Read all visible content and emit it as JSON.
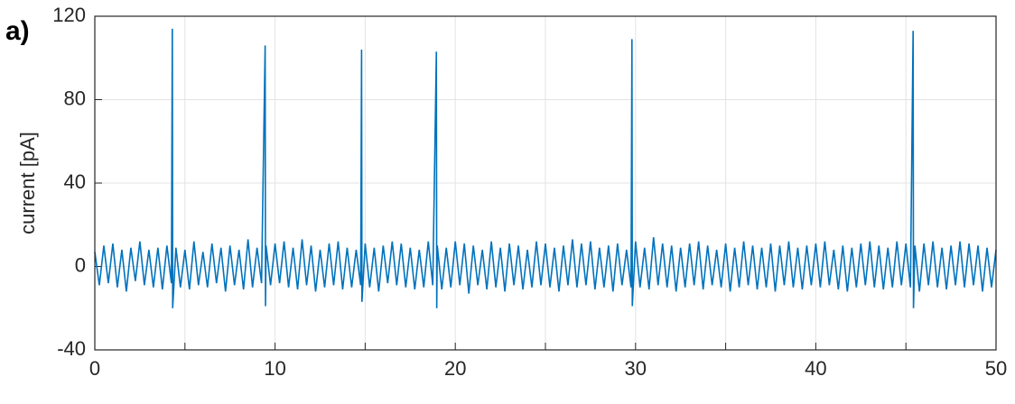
{
  "chart_data": {
    "type": "line",
    "panel_label": "a)",
    "y_label": "current [pA]",
    "xlim": [
      0,
      50
    ],
    "ylim": [
      -40,
      120
    ],
    "xticks": [
      0,
      10,
      20,
      30,
      40,
      50
    ],
    "x_minor_ticks": [
      5,
      15,
      25,
      35,
      45
    ],
    "yticks": [
      -40,
      0,
      40,
      80,
      120
    ],
    "grid": true,
    "x": [
      0,
      0.25,
      0.5,
      0.75,
      1,
      1.25,
      1.5,
      1.75,
      2,
      2.25,
      2.5,
      2.75,
      3,
      3.25,
      3.5,
      3.75,
      4,
      4.25,
      4.3,
      4.32,
      4.5,
      4.75,
      5,
      5.25,
      5.5,
      5.75,
      6,
      6.25,
      6.5,
      6.75,
      7,
      7.25,
      7.5,
      7.75,
      8,
      8.25,
      8.5,
      8.75,
      9,
      9.25,
      9.45,
      9.47,
      9.5,
      9.75,
      10,
      10.25,
      10.5,
      10.75,
      11,
      11.25,
      11.5,
      11.75,
      12,
      12.25,
      12.5,
      12.75,
      13,
      13.25,
      13.5,
      13.75,
      14,
      14.25,
      14.5,
      14.75,
      14.8,
      14.82,
      15,
      15.25,
      15.5,
      15.75,
      16,
      16.25,
      16.5,
      16.75,
      17,
      17.25,
      17.5,
      17.75,
      18,
      18.25,
      18.5,
      18.75,
      18.95,
      18.97,
      19,
      19.25,
      19.5,
      19.75,
      20,
      20.25,
      20.5,
      20.75,
      21,
      21.25,
      21.5,
      21.75,
      22,
      22.25,
      22.5,
      22.75,
      23,
      23.25,
      23.5,
      23.75,
      24,
      24.25,
      24.5,
      24.75,
      25,
      25.25,
      25.5,
      25.75,
      26,
      26.25,
      26.5,
      26.75,
      27,
      27.25,
      27.5,
      27.75,
      28,
      28.25,
      28.5,
      28.75,
      29,
      29.25,
      29.5,
      29.75,
      29.8,
      29.82,
      30,
      30.25,
      30.5,
      30.75,
      31,
      31.25,
      31.5,
      31.75,
      32,
      32.25,
      32.5,
      32.75,
      33,
      33.25,
      33.5,
      33.75,
      34,
      34.25,
      34.5,
      34.75,
      35,
      35.25,
      35.5,
      35.75,
      36,
      36.25,
      36.5,
      36.75,
      37,
      37.25,
      37.5,
      37.75,
      38,
      38.25,
      38.5,
      38.75,
      39,
      39.25,
      39.5,
      39.75,
      40,
      40.25,
      40.5,
      40.75,
      41,
      41.25,
      41.5,
      41.75,
      42,
      42.25,
      42.5,
      42.75,
      43,
      43.25,
      43.5,
      43.75,
      44,
      44.25,
      44.5,
      44.75,
      45,
      45.25,
      45.4,
      45.42,
      45.5,
      45.75,
      46,
      46.25,
      46.5,
      46.75,
      47,
      47.25,
      47.5,
      47.75,
      48,
      48.25,
      48.5,
      48.75,
      49,
      49.25,
      49.5,
      49.75,
      50
    ],
    "series": [
      {
        "color": "#0072bd",
        "values": [
          7,
          -9,
          10,
          -8,
          11,
          -10,
          8,
          -12,
          9,
          -7,
          12,
          -9,
          8,
          -10,
          9,
          -11,
          10,
          -8,
          114,
          -20,
          9,
          -10,
          8,
          -11,
          12,
          -9,
          7,
          -10,
          11,
          -8,
          9,
          -12,
          10,
          -9,
          8,
          -11,
          13,
          -10,
          9,
          -8,
          106,
          -19,
          10,
          -9,
          11,
          -8,
          12,
          -10,
          9,
          -11,
          13,
          -9,
          10,
          -12,
          8,
          -10,
          11,
          -9,
          12,
          -11,
          9,
          -10,
          8,
          -9,
          104,
          -17,
          11,
          -10,
          9,
          -12,
          10,
          -8,
          12,
          -9,
          11,
          -10,
          9,
          -11,
          8,
          -10,
          12,
          -9,
          103,
          -20,
          10,
          -11,
          9,
          -10,
          12,
          -9,
          11,
          -13,
          10,
          -9,
          8,
          -11,
          12,
          -10,
          9,
          -12,
          11,
          -9,
          10,
          -11,
          8,
          -10,
          12,
          -9,
          11,
          -10,
          9,
          -12,
          10,
          -9,
          13,
          -10,
          11,
          -9,
          12,
          -11,
          9,
          -10,
          10,
          -12,
          11,
          -9,
          8,
          -10,
          109,
          -19,
          12,
          -10,
          9,
          -11,
          14,
          -9,
          11,
          -10,
          10,
          -12,
          9,
          -10,
          11,
          -9,
          12,
          -11,
          10,
          -9,
          8,
          -10,
          11,
          -12,
          9,
          -10,
          12,
          -9,
          10,
          -11,
          9,
          -10,
          11,
          -12,
          10,
          -9,
          12,
          -10,
          9,
          -11,
          10,
          -9,
          11,
          -10,
          12,
          -9,
          8,
          -11,
          10,
          -12,
          9,
          -10,
          11,
          -9,
          12,
          -10,
          10,
          -11,
          9,
          -10,
          12,
          -9,
          11,
          -10,
          113,
          -20,
          10,
          -12,
          11,
          -9,
          12,
          -10,
          9,
          -11,
          10,
          -9,
          12,
          -10,
          11,
          -9,
          10,
          -12,
          9,
          -10,
          8
        ]
      }
    ]
  }
}
